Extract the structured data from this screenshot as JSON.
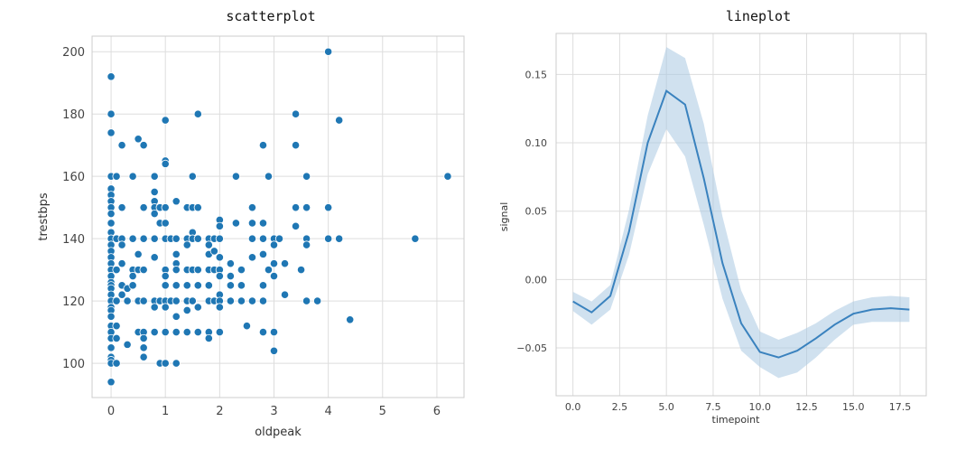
{
  "chart_data": [
    {
      "type": "scatter",
      "title": "scatterplot",
      "xlabel": "oldpeak",
      "ylabel": "trestbps",
      "xlim": [
        -0.35,
        6.5
      ],
      "ylim": [
        89,
        205
      ],
      "xticks": [
        "0",
        "1",
        "2",
        "3",
        "4",
        "5",
        "6"
      ],
      "yticks": [
        "100",
        "120",
        "140",
        "160",
        "180",
        "200"
      ],
      "grid": true,
      "color": "#1f77b4",
      "points": [
        [
          0,
          192
        ],
        [
          0,
          180
        ],
        [
          0,
          174
        ],
        [
          0,
          160
        ],
        [
          0,
          156
        ],
        [
          0,
          154
        ],
        [
          0,
          152
        ],
        [
          0,
          150
        ],
        [
          0,
          148
        ],
        [
          0,
          145
        ],
        [
          0,
          142
        ],
        [
          0,
          140
        ],
        [
          0,
          138
        ],
        [
          0,
          136
        ],
        [
          0,
          134
        ],
        [
          0,
          132
        ],
        [
          0,
          130
        ],
        [
          0,
          128
        ],
        [
          0,
          126
        ],
        [
          0,
          125
        ],
        [
          0,
          124
        ],
        [
          0,
          122
        ],
        [
          0,
          120
        ],
        [
          0,
          118
        ],
        [
          0,
          117
        ],
        [
          0,
          115
        ],
        [
          0,
          112
        ],
        [
          0,
          110
        ],
        [
          0,
          108
        ],
        [
          0,
          105
        ],
        [
          0,
          102
        ],
        [
          0,
          101
        ],
        [
          0,
          100
        ],
        [
          0,
          94
        ],
        [
          0.1,
          160
        ],
        [
          0.1,
          140
        ],
        [
          0.1,
          130
        ],
        [
          0.1,
          120
        ],
        [
          0.1,
          112
        ],
        [
          0.1,
          108
        ],
        [
          0.1,
          100
        ],
        [
          0.2,
          170
        ],
        [
          0.2,
          150
        ],
        [
          0.2,
          140
        ],
        [
          0.2,
          138
        ],
        [
          0.2,
          132
        ],
        [
          0.2,
          125
        ],
        [
          0.2,
          122
        ],
        [
          0.3,
          124
        ],
        [
          0.3,
          120
        ],
        [
          0.3,
          106
        ],
        [
          0.4,
          160
        ],
        [
          0.4,
          140
        ],
        [
          0.4,
          130
        ],
        [
          0.4,
          128
        ],
        [
          0.4,
          125
        ],
        [
          0.5,
          172
        ],
        [
          0.5,
          135
        ],
        [
          0.5,
          130
        ],
        [
          0.5,
          120
        ],
        [
          0.5,
          110
        ],
        [
          0.6,
          170
        ],
        [
          0.6,
          150
        ],
        [
          0.6,
          140
        ],
        [
          0.6,
          130
        ],
        [
          0.6,
          120
        ],
        [
          0.6,
          110
        ],
        [
          0.6,
          108
        ],
        [
          0.6,
          105
        ],
        [
          0.6,
          102
        ],
        [
          0.8,
          160
        ],
        [
          0.8,
          155
        ],
        [
          0.8,
          152
        ],
        [
          0.8,
          150
        ],
        [
          0.8,
          148
        ],
        [
          0.8,
          140
        ],
        [
          0.8,
          134
        ],
        [
          0.8,
          120
        ],
        [
          0.8,
          118
        ],
        [
          0.8,
          110
        ],
        [
          0.9,
          150
        ],
        [
          0.9,
          145
        ],
        [
          0.9,
          120
        ],
        [
          0.9,
          100
        ],
        [
          1,
          178
        ],
        [
          1,
          165
        ],
        [
          1,
          164
        ],
        [
          1,
          150
        ],
        [
          1,
          145
        ],
        [
          1,
          140
        ],
        [
          1,
          130
        ],
        [
          1,
          128
        ],
        [
          1,
          125
        ],
        [
          1,
          120
        ],
        [
          1,
          118
        ],
        [
          1,
          110
        ],
        [
          1,
          100
        ],
        [
          1.1,
          140
        ],
        [
          1.1,
          120
        ],
        [
          1.2,
          152
        ],
        [
          1.2,
          140
        ],
        [
          1.2,
          135
        ],
        [
          1.2,
          132
        ],
        [
          1.2,
          130
        ],
        [
          1.2,
          125
        ],
        [
          1.2,
          120
        ],
        [
          1.2,
          115
        ],
        [
          1.2,
          110
        ],
        [
          1.2,
          100
        ],
        [
          1.4,
          150
        ],
        [
          1.4,
          140
        ],
        [
          1.4,
          138
        ],
        [
          1.4,
          130
        ],
        [
          1.4,
          125
        ],
        [
          1.4,
          120
        ],
        [
          1.4,
          117
        ],
        [
          1.4,
          110
        ],
        [
          1.5,
          160
        ],
        [
          1.5,
          150
        ],
        [
          1.5,
          142
        ],
        [
          1.5,
          140
        ],
        [
          1.5,
          130
        ],
        [
          1.5,
          120
        ],
        [
          1.6,
          180
        ],
        [
          1.6,
          150
        ],
        [
          1.6,
          140
        ],
        [
          1.6,
          130
        ],
        [
          1.6,
          125
        ],
        [
          1.6,
          118
        ],
        [
          1.6,
          110
        ],
        [
          1.8,
          140
        ],
        [
          1.8,
          138
        ],
        [
          1.8,
          135
        ],
        [
          1.8,
          130
        ],
        [
          1.8,
          125
        ],
        [
          1.8,
          120
        ],
        [
          1.8,
          110
        ],
        [
          1.8,
          108
        ],
        [
          1.9,
          140
        ],
        [
          1.9,
          136
        ],
        [
          1.9,
          130
        ],
        [
          1.9,
          120
        ],
        [
          2,
          146
        ],
        [
          2,
          144
        ],
        [
          2,
          140
        ],
        [
          2,
          134
        ],
        [
          2,
          130
        ],
        [
          2,
          128
        ],
        [
          2,
          122
        ],
        [
          2,
          120
        ],
        [
          2,
          118
        ],
        [
          2,
          110
        ],
        [
          2.2,
          132
        ],
        [
          2.2,
          128
        ],
        [
          2.2,
          125
        ],
        [
          2.2,
          120
        ],
        [
          2.3,
          160
        ],
        [
          2.3,
          145
        ],
        [
          2.4,
          130
        ],
        [
          2.4,
          125
        ],
        [
          2.4,
          120
        ],
        [
          2.5,
          112
        ],
        [
          2.6,
          150
        ],
        [
          2.6,
          145
        ],
        [
          2.6,
          140
        ],
        [
          2.6,
          134
        ],
        [
          2.6,
          120
        ],
        [
          2.8,
          170
        ],
        [
          2.8,
          145
        ],
        [
          2.8,
          140
        ],
        [
          2.8,
          135
        ],
        [
          2.8,
          125
        ],
        [
          2.8,
          120
        ],
        [
          2.8,
          110
        ],
        [
          2.9,
          160
        ],
        [
          2.9,
          130
        ],
        [
          3,
          140
        ],
        [
          3,
          138
        ],
        [
          3,
          132
        ],
        [
          3,
          128
        ],
        [
          3,
          110
        ],
        [
          3,
          104
        ],
        [
          3.1,
          140
        ],
        [
          3.2,
          132
        ],
        [
          3.2,
          122
        ],
        [
          3.4,
          180
        ],
        [
          3.4,
          170
        ],
        [
          3.4,
          150
        ],
        [
          3.4,
          144
        ],
        [
          3.5,
          130
        ],
        [
          3.6,
          160
        ],
        [
          3.6,
          150
        ],
        [
          3.6,
          140
        ],
        [
          3.6,
          138
        ],
        [
          3.6,
          120
        ],
        [
          3.8,
          120
        ],
        [
          4,
          200
        ],
        [
          4,
          150
        ],
        [
          4,
          140
        ],
        [
          4.2,
          178
        ],
        [
          4.2,
          140
        ],
        [
          4.4,
          114
        ],
        [
          5.6,
          140
        ],
        [
          6.2,
          160
        ]
      ]
    },
    {
      "type": "line",
      "title": "lineplot",
      "xlabel": "timepoint",
      "ylabel": "signal",
      "xlim": [
        -0.9,
        18.9
      ],
      "ylim": [
        -0.085,
        0.18
      ],
      "xticks": [
        "0.0",
        "2.5",
        "5.0",
        "7.5",
        "10.0",
        "12.5",
        "15.0",
        "17.5"
      ],
      "yticks": [
        "−0.05",
        "0.00",
        "0.05",
        "0.10",
        "0.15"
      ],
      "grid": true,
      "color": "#3a82be",
      "band_color": "#a9c8e1",
      "x": [
        0,
        1,
        2,
        3,
        4,
        5,
        6,
        7,
        8,
        9,
        10,
        11,
        12,
        13,
        14,
        15,
        16,
        17,
        18
      ],
      "y": [
        -0.016,
        -0.024,
        -0.012,
        0.035,
        0.1,
        0.138,
        0.128,
        0.074,
        0.012,
        -0.032,
        -0.053,
        -0.057,
        -0.052,
        -0.043,
        -0.033,
        -0.025,
        -0.022,
        -0.021,
        -0.022
      ],
      "ci_low": [
        -0.023,
        -0.033,
        -0.022,
        0.018,
        0.077,
        0.11,
        0.09,
        0.04,
        -0.014,
        -0.052,
        -0.064,
        -0.072,
        -0.068,
        -0.057,
        -0.044,
        -0.033,
        -0.031,
        -0.031,
        -0.031
      ],
      "ci_high": [
        -0.009,
        -0.016,
        -0.004,
        0.051,
        0.12,
        0.17,
        0.162,
        0.114,
        0.046,
        -0.008,
        -0.038,
        -0.044,
        -0.039,
        -0.032,
        -0.023,
        -0.016,
        -0.013,
        -0.012,
        -0.013
      ]
    }
  ]
}
